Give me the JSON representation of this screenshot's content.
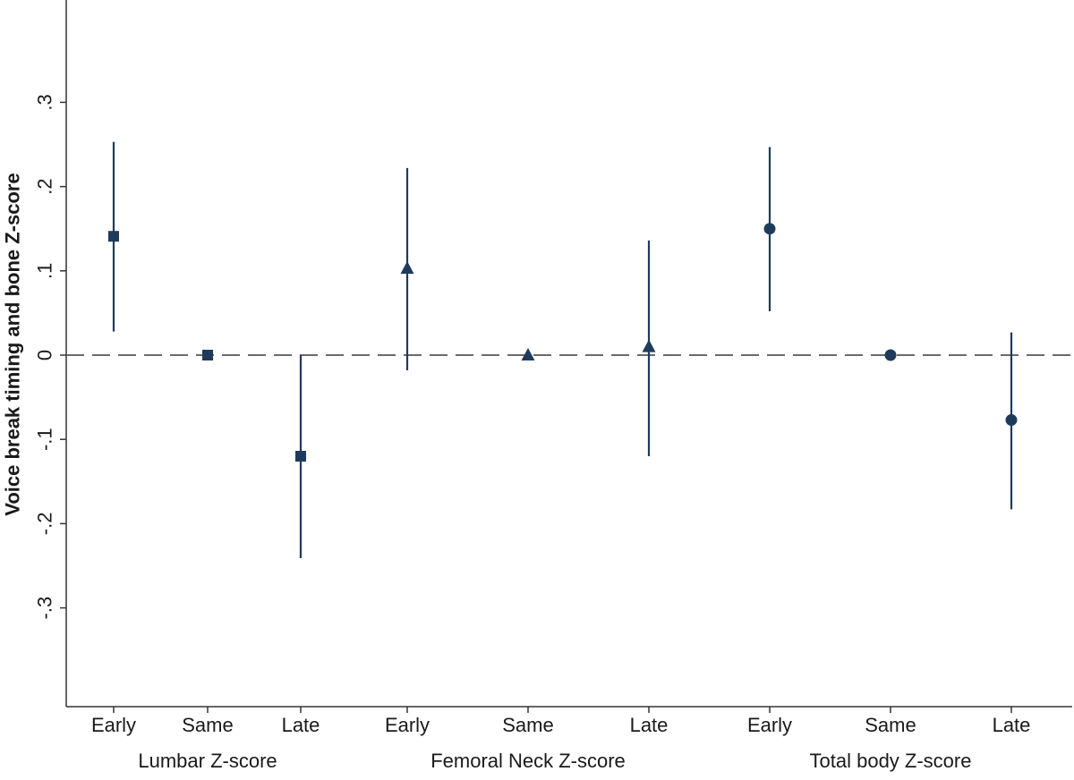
{
  "chart_data": {
    "type": "scatter",
    "title": "",
    "ylabel": "Voice break timing and bone Z-score",
    "ylim": [
      -0.4,
      0.4
    ],
    "yticks": [
      {
        "value": 0.3,
        "label": ".3"
      },
      {
        "value": 0.2,
        "label": ".2"
      },
      {
        "value": 0.1,
        "label": ".1"
      },
      {
        "value": 0,
        "label": "0"
      },
      {
        "value": -0.1,
        "label": "-.1"
      },
      {
        "value": -0.2,
        "label": "-.2"
      },
      {
        "value": -0.3,
        "label": "-.3"
      }
    ],
    "reference_line": {
      "y": 0,
      "style": "dashed"
    },
    "marker_color": "#1f3b5c",
    "groups": [
      {
        "label": "Lumbar Z-score",
        "marker": "square",
        "points": [
          {
            "category": "Early",
            "estimate": 0.141,
            "ci_low": 0.028,
            "ci_high": 0.253
          },
          {
            "category": "Same",
            "estimate": 0.0,
            "ci_low": null,
            "ci_high": null
          },
          {
            "category": "Late",
            "estimate": -0.12,
            "ci_low": -0.241,
            "ci_high": 0.0
          }
        ]
      },
      {
        "label": "Femoral Neck Z-score",
        "marker": "triangle",
        "points": [
          {
            "category": "Early",
            "estimate": 0.103,
            "ci_low": -0.018,
            "ci_high": 0.222
          },
          {
            "category": "Same",
            "estimate": 0.0,
            "ci_low": null,
            "ci_high": null
          },
          {
            "category": "Late",
            "estimate": 0.01,
            "ci_low": -0.12,
            "ci_high": 0.136
          }
        ]
      },
      {
        "label": "Total body Z-score",
        "marker": "circle",
        "points": [
          {
            "category": "Early",
            "estimate": 0.15,
            "ci_low": 0.052,
            "ci_high": 0.247
          },
          {
            "category": "Same",
            "estimate": 0.0,
            "ci_low": null,
            "ci_high": null
          },
          {
            "category": "Late",
            "estimate": -0.077,
            "ci_low": -0.183,
            "ci_high": 0.027
          }
        ]
      }
    ]
  }
}
